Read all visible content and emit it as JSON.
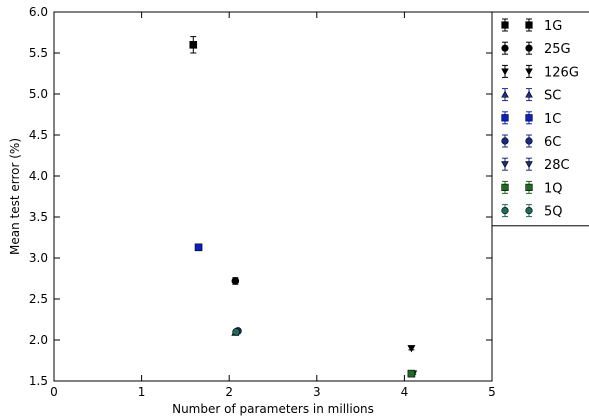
{
  "chart_data": {
    "type": "scatter",
    "xlabel": "Number of parameters in millions",
    "ylabel": "Mean test error (%)",
    "xlim": [
      0,
      5
    ],
    "ylim": [
      1.5,
      6.0
    ],
    "xticks": [
      "0",
      "1",
      "2",
      "3",
      "4",
      "5"
    ],
    "yticks": [
      "1.5",
      "2.0",
      "2.5",
      "3.0",
      "3.5",
      "4.0",
      "4.5",
      "5.0",
      "5.5",
      "6.0"
    ],
    "grid": false,
    "legend_position": "right",
    "error_bars": true,
    "series": [
      {
        "name": "1G",
        "marker": "square",
        "color": "#000000",
        "x": 1.59,
        "y": 5.6,
        "err": 0.1
      },
      {
        "name": "25G",
        "marker": "circle",
        "color": "#000000",
        "x": 2.07,
        "y": 2.72,
        "err": 0.04
      },
      {
        "name": "126G",
        "marker": "triangle-down",
        "color": "#000000",
        "x": 4.08,
        "y": 1.9,
        "err": 0.02
      },
      {
        "name": "SC",
        "marker": "triangle-up",
        "color": "#1f2a8c",
        "x": 2.07,
        "y": 2.09,
        "err": 0.01
      },
      {
        "name": "1C",
        "marker": "square",
        "color": "#0a1fbf",
        "x": 1.65,
        "y": 3.13,
        "err": 0.01
      },
      {
        "name": "6C",
        "marker": "circle",
        "color": "#1a2a80",
        "x": 2.1,
        "y": 2.11,
        "err": 0.01
      },
      {
        "name": "28C",
        "marker": "triangle-down",
        "color": "#1a2a80",
        "x": 4.1,
        "y": 1.59,
        "err": 0.01
      },
      {
        "name": "1Q",
        "marker": "square",
        "color": "#1f6b1f",
        "x": 4.08,
        "y": 1.59,
        "err": 0.02
      },
      {
        "name": "5Q",
        "marker": "circle",
        "color": "#1f6b5a",
        "x": 2.08,
        "y": 2.1,
        "err": 0.02
      }
    ]
  }
}
